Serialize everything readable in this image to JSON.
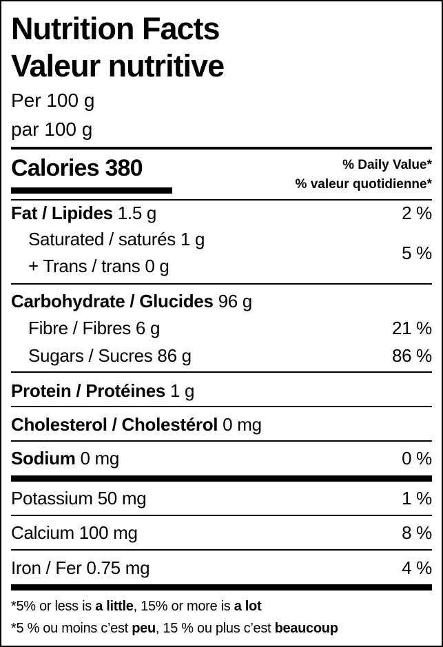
{
  "title_en": "Nutrition Facts",
  "title_fr": "Valeur nutritive",
  "serving_en": "Per 100 g",
  "serving_fr": "par 100 g",
  "calories_label": "Calories",
  "calories_value": "380",
  "dv_en": "% Daily Value*",
  "dv_fr": "% valeur quotidienne*",
  "nutrients": {
    "fat": {
      "label": "Fat / Lipides",
      "amount": "1.5 g",
      "dv": "2 %"
    },
    "saturated": {
      "label": "Saturated / saturés",
      "amount": "1 g"
    },
    "trans": {
      "label": "+ Trans / trans",
      "amount": "0 g"
    },
    "sat_trans_dv": "5 %",
    "carbohydrate": {
      "label": "Carbohydrate / Glucides",
      "amount": "96 g"
    },
    "fibre": {
      "label": "Fibre / Fibres",
      "amount": "6 g",
      "dv": "21 %"
    },
    "sugars": {
      "label": "Sugars / Sucres",
      "amount": "86 g",
      "dv": "86 %"
    },
    "protein": {
      "label": "Protein / Protéines",
      "amount": "1 g"
    },
    "cholesterol": {
      "label": "Cholesterol / Cholestérol",
      "amount": "0 mg"
    },
    "sodium": {
      "label": "Sodium",
      "amount": "0 mg",
      "dv": "0 %"
    },
    "potassium": {
      "label": "Potassium",
      "amount": "50 mg",
      "dv": "1 %"
    },
    "calcium": {
      "label": "Calcium",
      "amount": "100 mg",
      "dv": "8 %"
    },
    "iron": {
      "label": "Iron / Fer",
      "amount": "0.75 mg",
      "dv": "4 %"
    }
  },
  "footnote_en": {
    "a": "*5% or less is ",
    "b": "a little",
    "c": ", 15% or more is ",
    "d": "a lot"
  },
  "footnote_fr": {
    "a": "*5 % ou moins c’est ",
    "b": "peu",
    "c": ", 15 % ou plus c’est ",
    "d": "beaucoup"
  }
}
